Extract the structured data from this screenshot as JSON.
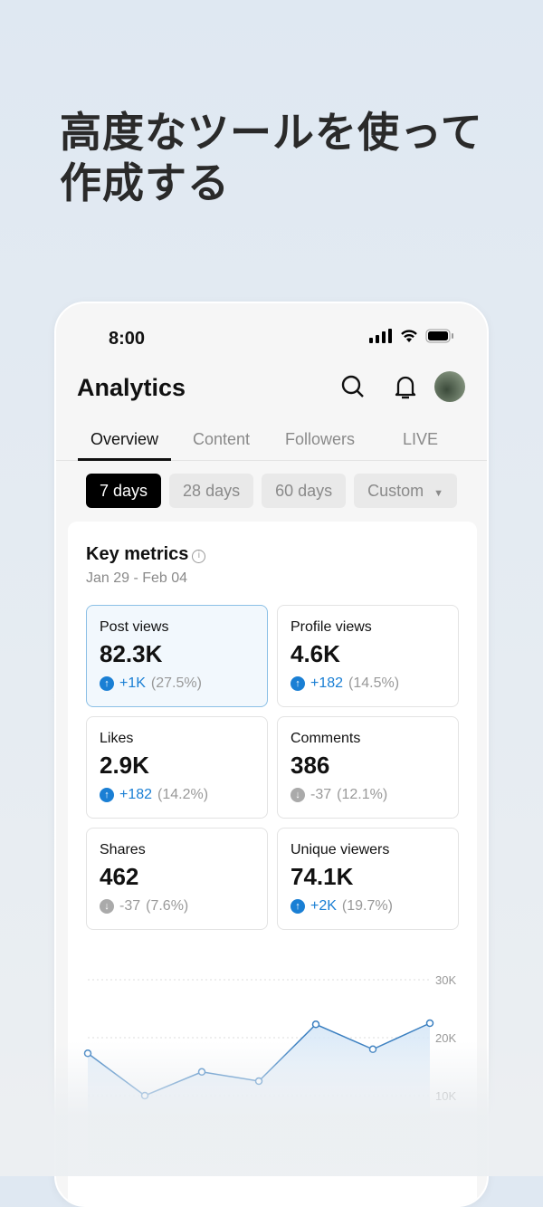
{
  "headline": {
    "line1": "高度なツールを使って",
    "line2": "作成する"
  },
  "status_bar": {
    "time": "8:00"
  },
  "header": {
    "title": "Analytics"
  },
  "tabs": [
    {
      "label": "Overview",
      "active": true
    },
    {
      "label": "Content"
    },
    {
      "label": "Followers"
    },
    {
      "label": "LIVE"
    }
  ],
  "ranges": [
    {
      "label": "7 days",
      "active": true
    },
    {
      "label": "28 days"
    },
    {
      "label": "60 days"
    },
    {
      "label": "Custom"
    }
  ],
  "key_metrics": {
    "title": "Key metrics",
    "date_range": "Jan 29 - Feb 04",
    "items": [
      {
        "label": "Post views",
        "value": "82.3K",
        "delta": "+1K",
        "pct": "(27.5%)",
        "trend": "up"
      },
      {
        "label": "Profile views",
        "value": "4.6K",
        "delta": "+182",
        "pct": "(14.5%)",
        "trend": "up"
      },
      {
        "label": "Likes",
        "value": "2.9K",
        "delta": "+182",
        "pct": "(14.2%)",
        "trend": "up"
      },
      {
        "label": "Comments",
        "value": "386",
        "delta": "-37",
        "pct": "(12.1%)",
        "trend": "down"
      },
      {
        "label": "Shares",
        "value": "462",
        "delta": "-37",
        "pct": "(7.6%)",
        "trend": "down"
      },
      {
        "label": "Unique viewers",
        "value": "74.1K",
        "delta": "+2K",
        "pct": "(19.7%)",
        "trend": "up"
      }
    ]
  },
  "chart_data": {
    "type": "area",
    "y_ticks": [
      "30K",
      "20K",
      "10K"
    ],
    "ylim": [
      0,
      30000
    ],
    "grid": true,
    "values": [
      17300,
      10000,
      14100,
      12500,
      22300,
      18000,
      22500
    ],
    "color": "#3a7fc0"
  }
}
